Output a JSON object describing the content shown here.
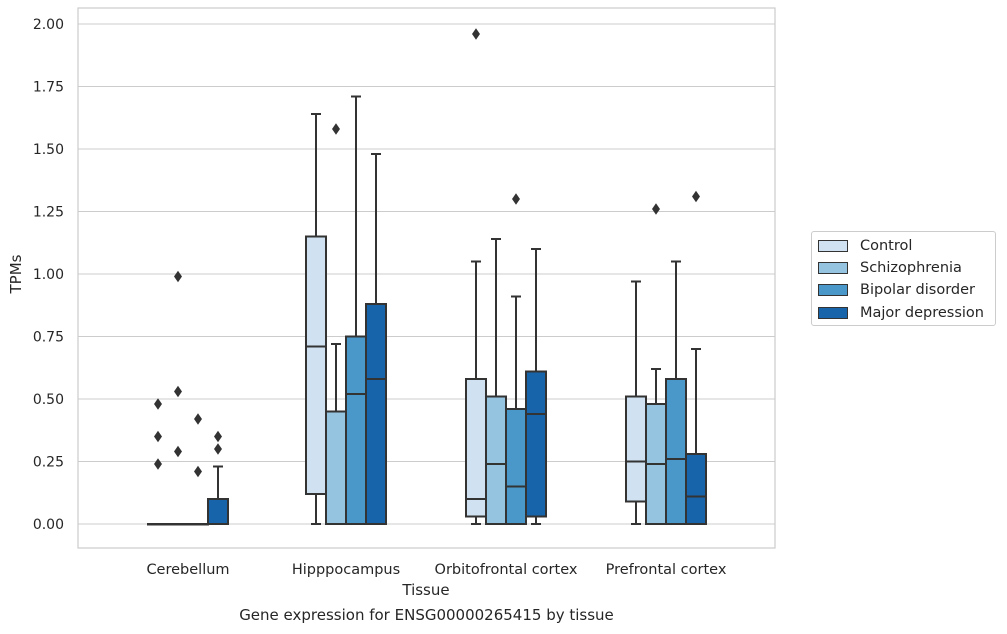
{
  "caption": "Gene expression for ENSG00000265415 by tissue",
  "colors": {
    "Control": "#d0e1f2",
    "Schizophrenia": "#94c4df",
    "Bipolar disorder": "#4a98c9",
    "Major depression": "#1764ab",
    "box_edge": "#333333",
    "grid": "#cccccc"
  },
  "chart_data": {
    "type": "box",
    "title": "",
    "xlabel": "Tissue",
    "ylabel": "TPMs",
    "ylim": [
      -0.09,
      2.06
    ],
    "yticks": [
      0.0,
      0.25,
      0.5,
      0.75,
      1.0,
      1.25,
      1.5,
      1.75,
      2.0
    ],
    "ytick_labels": [
      "0.00",
      "0.25",
      "0.50",
      "0.75",
      "1.00",
      "1.25",
      "1.50",
      "1.75",
      "2.00"
    ],
    "grid": "horizontal",
    "legend_position": "right",
    "categories": [
      "Cerebellum",
      "Hipppocampus",
      "Orbitofrontal cortex",
      "Prefrontal cortex"
    ],
    "series": [
      {
        "name": "Control",
        "boxes": [
          {
            "category": "Cerebellum",
            "whisker_low": 0.0,
            "q1": 0.0,
            "median": 0.0,
            "q3": 0.0,
            "whisker_high": 0.0,
            "outliers": [
              0.48,
              0.35,
              0.24
            ]
          },
          {
            "category": "Hipppocampus",
            "whisker_low": 0.0,
            "q1": 0.12,
            "median": 0.71,
            "q3": 1.15,
            "whisker_high": 1.64,
            "outliers": []
          },
          {
            "category": "Orbitofrontal cortex",
            "whisker_low": 0.0,
            "q1": 0.03,
            "median": 0.1,
            "q3": 0.58,
            "whisker_high": 1.05,
            "outliers": [
              1.96
            ]
          },
          {
            "category": "Prefrontal cortex",
            "whisker_low": 0.0,
            "q1": 0.09,
            "median": 0.25,
            "q3": 0.51,
            "whisker_high": 0.97,
            "outliers": []
          }
        ]
      },
      {
        "name": "Schizophrenia",
        "boxes": [
          {
            "category": "Cerebellum",
            "whisker_low": 0.0,
            "q1": 0.0,
            "median": 0.0,
            "q3": 0.0,
            "whisker_high": 0.0,
            "outliers": [
              0.99,
              0.53,
              0.29
            ]
          },
          {
            "category": "Hipppocampus",
            "whisker_low": 0.0,
            "q1": 0.0,
            "median": 0.0,
            "q3": 0.45,
            "whisker_high": 0.72,
            "outliers": [
              1.58
            ]
          },
          {
            "category": "Orbitofrontal cortex",
            "whisker_low": 0.0,
            "q1": 0.0,
            "median": 0.24,
            "q3": 0.51,
            "whisker_high": 1.14,
            "outliers": []
          },
          {
            "category": "Prefrontal cortex",
            "whisker_low": 0.0,
            "q1": 0.0,
            "median": 0.24,
            "q3": 0.48,
            "whisker_high": 0.62,
            "outliers": [
              1.26
            ]
          }
        ]
      },
      {
        "name": "Bipolar disorder",
        "boxes": [
          {
            "category": "Cerebellum",
            "whisker_low": 0.0,
            "q1": 0.0,
            "median": 0.0,
            "q3": 0.0,
            "whisker_high": 0.0,
            "outliers": [
              0.42,
              0.21
            ]
          },
          {
            "category": "Hipppocampus",
            "whisker_low": 0.0,
            "q1": 0.0,
            "median": 0.52,
            "q3": 0.75,
            "whisker_high": 1.71,
            "outliers": []
          },
          {
            "category": "Orbitofrontal cortex",
            "whisker_low": 0.0,
            "q1": 0.0,
            "median": 0.15,
            "q3": 0.46,
            "whisker_high": 0.91,
            "outliers": [
              1.3
            ]
          },
          {
            "category": "Prefrontal cortex",
            "whisker_low": 0.0,
            "q1": 0.0,
            "median": 0.26,
            "q3": 0.58,
            "whisker_high": 1.05,
            "outliers": []
          }
        ]
      },
      {
        "name": "Major depression",
        "boxes": [
          {
            "category": "Cerebellum",
            "whisker_low": 0.0,
            "q1": 0.0,
            "median": 0.0,
            "q3": 0.1,
            "whisker_high": 0.23,
            "outliers": [
              0.35,
              0.3
            ]
          },
          {
            "category": "Hipppocampus",
            "whisker_low": 0.0,
            "q1": 0.0,
            "median": 0.58,
            "q3": 0.88,
            "whisker_high": 1.48,
            "outliers": []
          },
          {
            "category": "Orbitofrontal cortex",
            "whisker_low": 0.0,
            "q1": 0.03,
            "median": 0.44,
            "q3": 0.61,
            "whisker_high": 1.1,
            "outliers": []
          },
          {
            "category": "Prefrontal cortex",
            "whisker_low": 0.0,
            "q1": 0.0,
            "median": 0.11,
            "q3": 0.28,
            "whisker_high": 0.7,
            "outliers": [
              1.31
            ]
          }
        ]
      }
    ]
  }
}
